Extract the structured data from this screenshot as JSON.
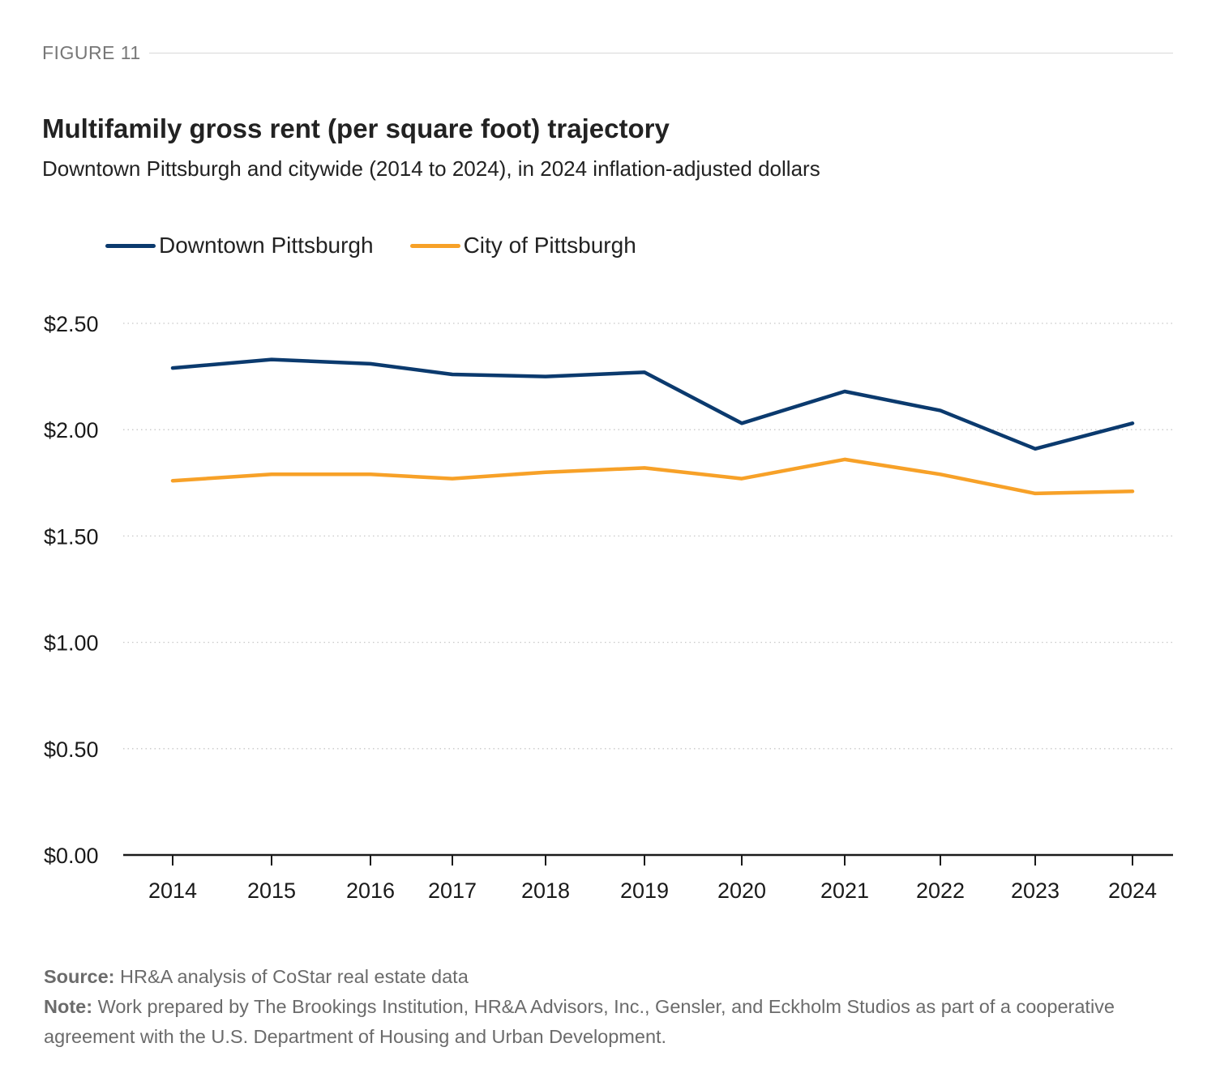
{
  "figure_label": "FIGURE 11",
  "colors": {
    "downtown": "#0b3a6e",
    "city": "#f7a128",
    "grid": "#c8c8c8",
    "axis": "#1a1a1a"
  },
  "chart_data": {
    "type": "line",
    "title": "Multifamily gross rent (per square foot) trajectory",
    "subtitle": "Downtown Pittsburgh and citywide (2014 to 2024), in 2024 inflation-adjusted dollars",
    "x": [
      "2014",
      "2015",
      "2016",
      "2017",
      "2018",
      "2019",
      "2020",
      "2021",
      "2022",
      "2023",
      "2024"
    ],
    "series": [
      {
        "name": "Downtown Pittsburgh",
        "values": [
          2.29,
          2.33,
          2.31,
          2.26,
          2.25,
          2.27,
          2.03,
          2.18,
          2.09,
          1.91,
          2.03
        ]
      },
      {
        "name": "City of Pittsburgh",
        "values": [
          1.76,
          1.79,
          1.79,
          1.77,
          1.8,
          1.82,
          1.77,
          1.86,
          1.79,
          1.7,
          1.71
        ]
      }
    ],
    "y_ticks": [
      "$0.00",
      "$0.50",
      "$1.00",
      "$1.50",
      "$2.00",
      "$2.50"
    ],
    "ylim": [
      0,
      2.5
    ],
    "grid": true,
    "legend_position": "top-left"
  },
  "footer": {
    "source_label": "Source:",
    "source_text": "HR&A analysis of CoStar real estate data",
    "note_label": "Note:",
    "note_text": "Work prepared by The Brookings Institution, HR&A Advisors, Inc., Gensler, and Eckholm Studios as part of a cooperative agreement with the U.S. Department of Housing and Urban Development."
  }
}
